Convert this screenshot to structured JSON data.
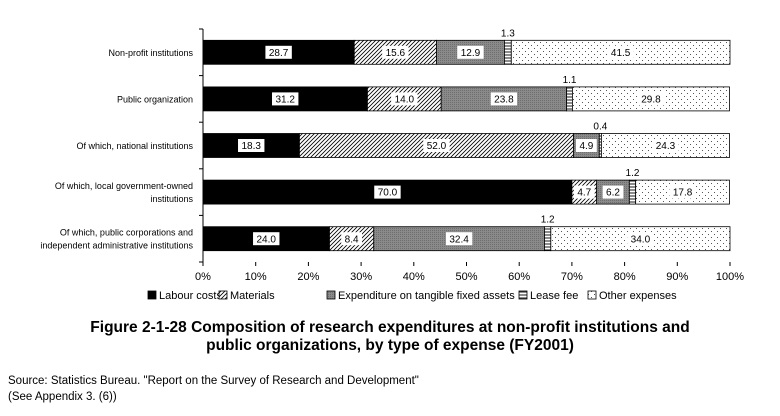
{
  "chart_data": {
    "type": "bar",
    "stacked": true,
    "horizontal": true,
    "percent": true,
    "categories": [
      [
        "Non-profit institutions"
      ],
      [
        "Public organization"
      ],
      [
        "Of which, national institutions"
      ],
      [
        "Of which, local government-owned",
        "institutions"
      ],
      [
        "Of which, public corporations and",
        "independent administrative institutions"
      ]
    ],
    "series": [
      {
        "name": "Labour costs",
        "values": [
          28.7,
          31.2,
          18.3,
          70.0,
          24.0
        ],
        "labels": [
          "28.7",
          "31.2",
          "18.3",
          "70.0",
          "24.0"
        ]
      },
      {
        "name": "Materials",
        "values": [
          15.6,
          14.0,
          52.0,
          4.7,
          8.4
        ],
        "labels": [
          "15.6",
          "14.0",
          "52.0",
          "4.7",
          "8.4"
        ]
      },
      {
        "name": "Expenditure on tangible fixed assets",
        "values": [
          12.9,
          23.8,
          4.9,
          6.2,
          32.4
        ],
        "labels": [
          "12.9",
          "23.8",
          "4.9",
          "6.2",
          "32.4"
        ]
      },
      {
        "name": "Lease fee",
        "values": [
          1.3,
          1.1,
          0.4,
          1.2,
          1.2
        ],
        "labels": [
          "1.3",
          "1.1",
          "0.4",
          "1.2",
          "1.2"
        ]
      },
      {
        "name": "Other expenses",
        "values": [
          41.5,
          29.8,
          24.3,
          17.8,
          34.0
        ],
        "labels": [
          "41.5",
          "29.8",
          "24.3",
          "17.8",
          "34.0"
        ]
      }
    ],
    "xlim": [
      0,
      100
    ],
    "x_ticks": [
      "0%",
      "10%",
      "20%",
      "30%",
      "40%",
      "50%",
      "60%",
      "70%",
      "80%",
      "90%",
      "100%"
    ],
    "legend_position": "bottom",
    "grid": false
  },
  "caption": {
    "line1": "Figure 2-1-28  Composition of research expenditures at non-profit institutions and",
    "line2": "public organizations, by type of expense (FY2001)"
  },
  "source": {
    "line1": "Source: Statistics Bureau. \"Report on the Survey of Research and Development\"",
    "line2": "(See Appendix 3. (6))"
  }
}
